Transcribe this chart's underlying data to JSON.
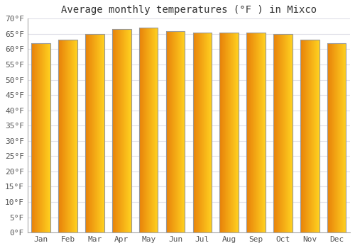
{
  "title": "Average monthly temperatures (°F ) in Mixco",
  "months": [
    "Jan",
    "Feb",
    "Mar",
    "Apr",
    "May",
    "Jun",
    "Jul",
    "Aug",
    "Sep",
    "Oct",
    "Nov",
    "Dec"
  ],
  "values": [
    62,
    63,
    65,
    66.5,
    67,
    66,
    65.5,
    65.5,
    65.5,
    65,
    63,
    62
  ],
  "bar_color_left": "#E8820A",
  "bar_color_right": "#FFD020",
  "ylim": [
    0,
    70
  ],
  "ytick_step": 5,
  "background_color": "#ffffff",
  "plot_bg_color": "#ffffff",
  "grid_color": "#e0e0e8",
  "title_fontsize": 10,
  "tick_fontsize": 8,
  "bar_width": 0.7,
  "bar_edge_color": "#999999",
  "bar_edge_linewidth": 0.8
}
